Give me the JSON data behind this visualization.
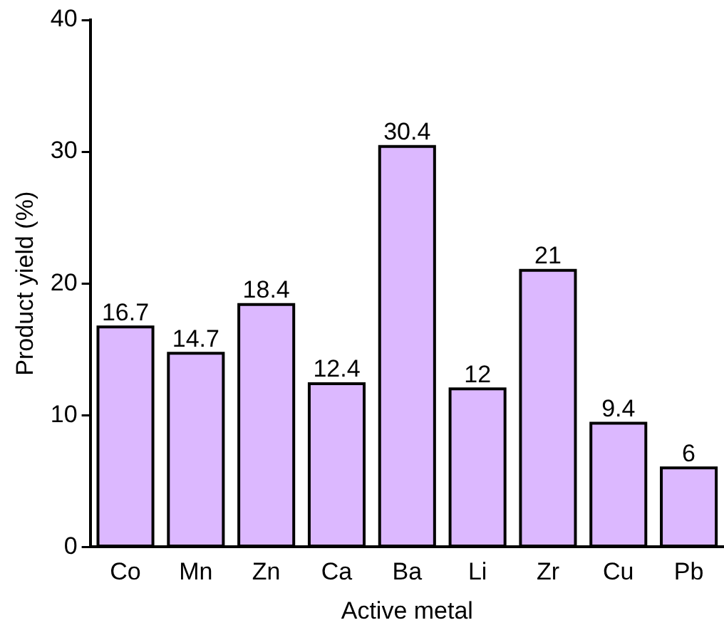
{
  "chart_data": {
    "type": "bar",
    "xlabel": "Active metal",
    "ylabel": "Product yield (%)",
    "categories": [
      "Co",
      "Mn",
      "Zn",
      "Ca",
      "Ba",
      "Li",
      "Zr",
      "Cu",
      "Pb"
    ],
    "values": [
      16.7,
      14.7,
      18.4,
      12.4,
      30.4,
      12,
      21,
      9.4,
      6
    ],
    "color": "#dcb8ff",
    "ylim": [
      0,
      40
    ],
    "yticks": [
      0,
      10,
      20,
      30,
      40
    ],
    "grid": false,
    "legend": false,
    "data_labels": true
  }
}
